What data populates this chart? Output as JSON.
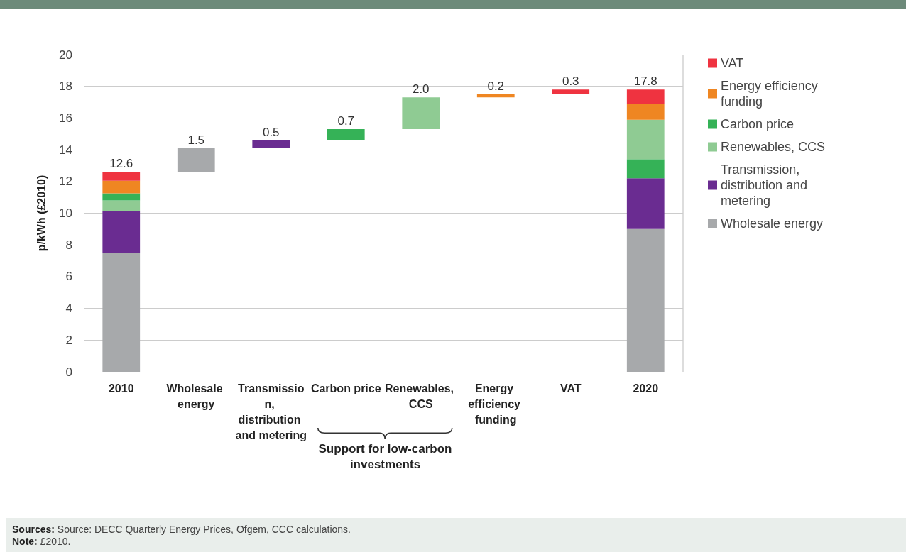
{
  "chart_data": {
    "type": "bar",
    "ylabel": "p/kWh (£2010)",
    "categories": [
      "2010",
      "Wholesale energy",
      "Transmission, distribution and metering",
      "Carbon price",
      "Renewables, CCS",
      "Energy efficiency funding",
      "VAT",
      "2020"
    ],
    "series": [
      {
        "name": "Wholesale energy",
        "color": "#a7a9ab",
        "values": [
          7.5,
          1.5,
          null,
          null,
          null,
          null,
          null,
          9.0
        ],
        "base": [
          0,
          12.6,
          null,
          null,
          null,
          null,
          null,
          0
        ],
        "value_labels": [
          null,
          "1.5",
          null,
          null,
          null,
          null,
          null,
          null
        ]
      },
      {
        "name": "Transmission, distribution and metering",
        "color": "#6a2c91",
        "values": [
          2.65,
          null,
          0.5,
          null,
          null,
          null,
          null,
          3.2
        ],
        "base": [
          7.5,
          null,
          14.1,
          null,
          null,
          null,
          null,
          9.0
        ],
        "value_labels": [
          null,
          null,
          "0.5",
          null,
          null,
          null,
          null,
          null
        ]
      },
      {
        "name": "Renewables, CCS",
        "color": "#8fcb93",
        "values": [
          0.65,
          null,
          null,
          null,
          2.0,
          null,
          null,
          2.5
        ],
        "base": [
          10.15,
          null,
          null,
          null,
          15.3,
          null,
          null,
          13.4
        ],
        "value_labels": [
          null,
          null,
          null,
          null,
          "2.0",
          null,
          null,
          null
        ]
      },
      {
        "name": "Carbon price",
        "color": "#35b257",
        "values": [
          0.45,
          null,
          null,
          0.7,
          null,
          null,
          null,
          1.2
        ],
        "base": [
          10.8,
          null,
          null,
          14.6,
          null,
          null,
          null,
          12.2
        ],
        "value_labels": [
          null,
          null,
          null,
          "0.7",
          null,
          null,
          null,
          null
        ]
      },
      {
        "name": "Energy efficiency funding",
        "color": "#ef8622",
        "values": [
          0.8,
          null,
          null,
          null,
          null,
          0.2,
          null,
          1.0
        ],
        "base": [
          11.25,
          null,
          null,
          null,
          null,
          17.3,
          null,
          15.9
        ],
        "value_labels": [
          null,
          null,
          null,
          null,
          null,
          "0.2",
          null,
          null
        ]
      },
      {
        "name": "VAT",
        "color": "#ef3340",
        "values": [
          0.55,
          null,
          null,
          null,
          null,
          null,
          0.3,
          0.9
        ],
        "base": [
          12.05,
          null,
          null,
          null,
          null,
          null,
          17.5,
          16.9
        ],
        "value_labels": [
          null,
          null,
          null,
          null,
          null,
          null,
          "0.3",
          null
        ]
      }
    ],
    "ylim": [
      0,
      20
    ],
    "yticks": [
      0,
      2,
      4,
      6,
      8,
      10,
      12,
      14,
      16,
      18,
      20
    ],
    "grid": "y",
    "legend": "right",
    "annotations": [
      {
        "text": "12.6",
        "x": "2010",
        "y": 12.6
      },
      {
        "text": "17.8",
        "x": "2020",
        "y": 17.8
      },
      "Support for low-carbon investments",
      "Sources: Source: DECC Quarterly Energy Prices, Ofgem, CCC calculations.",
      "Note: £2010."
    ]
  }
}
